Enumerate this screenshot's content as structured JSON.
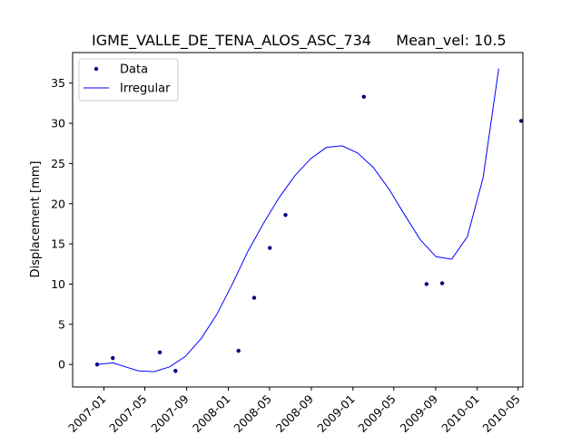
{
  "chart_data": {
    "type": "line",
    "title": "IGME_VALLE_DE_TENA_ALOS_ASC_734",
    "subtitle": "Mean_vel: 10.5",
    "xlabel": "",
    "ylabel": "Displacement [mm]",
    "xlim": [
      "2006-10-01",
      "2010-05-15"
    ],
    "ylim": [
      -2.8,
      38.8
    ],
    "x_ticks": [
      "2007-01",
      "2007-05",
      "2007-09",
      "2008-01",
      "2008-05",
      "2008-09",
      "2009-01",
      "2009-05",
      "2009-09",
      "2010-01",
      "2010-05"
    ],
    "y_ticks": [
      0,
      5,
      10,
      15,
      20,
      25,
      30,
      35
    ],
    "grid": false,
    "legend_position": "top-left",
    "series": [
      {
        "name": "Data",
        "style": "points",
        "color": "#00007f",
        "points": [
          {
            "x": "2006-12-12",
            "y": 0.0
          },
          {
            "x": "2007-01-27",
            "y": 0.8
          },
          {
            "x": "2007-06-14",
            "y": 1.5
          },
          {
            "x": "2007-07-30",
            "y": -0.8
          },
          {
            "x": "2008-01-31",
            "y": 1.7
          },
          {
            "x": "2008-03-17",
            "y": 8.3
          },
          {
            "x": "2008-05-02",
            "y": 14.5
          },
          {
            "x": "2008-06-17",
            "y": 18.6
          },
          {
            "x": "2009-02-02",
            "y": 33.3
          },
          {
            "x": "2009-08-05",
            "y": 10.0
          },
          {
            "x": "2009-09-20",
            "y": 10.1
          },
          {
            "x": "2010-05-10",
            "y": 30.3
          }
        ]
      },
      {
        "name": "Irregular",
        "style": "line",
        "color": "#0000ff",
        "points": [
          {
            "x": "2006-12-12",
            "y": 0.0
          },
          {
            "x": "2007-01-27",
            "y": 0.2
          },
          {
            "x": "2007-04-12",
            "y": -0.8
          },
          {
            "x": "2007-05-28",
            "y": -0.9
          },
          {
            "x": "2007-07-13",
            "y": -0.3
          },
          {
            "x": "2007-08-28",
            "y": 1.0
          },
          {
            "x": "2007-10-13",
            "y": 3.2
          },
          {
            "x": "2007-11-28",
            "y": 6.2
          },
          {
            "x": "2008-01-13",
            "y": 10.0
          },
          {
            "x": "2008-02-28",
            "y": 14.1
          },
          {
            "x": "2008-04-14",
            "y": 17.6
          },
          {
            "x": "2008-05-30",
            "y": 20.8
          },
          {
            "x": "2008-07-15",
            "y": 23.5
          },
          {
            "x": "2008-08-30",
            "y": 25.6
          },
          {
            "x": "2008-10-15",
            "y": 27.0
          },
          {
            "x": "2008-11-30",
            "y": 27.2
          },
          {
            "x": "2009-01-15",
            "y": 26.3
          },
          {
            "x": "2009-03-02",
            "y": 24.5
          },
          {
            "x": "2009-04-17",
            "y": 21.8
          },
          {
            "x": "2009-06-02",
            "y": 18.6
          },
          {
            "x": "2009-07-18",
            "y": 15.5
          },
          {
            "x": "2009-09-02",
            "y": 13.4
          },
          {
            "x": "2009-10-18",
            "y": 13.1
          },
          {
            "x": "2009-12-03",
            "y": 15.9
          },
          {
            "x": "2010-01-18",
            "y": 23.2
          },
          {
            "x": "2010-03-05",
            "y": 36.8
          }
        ]
      }
    ]
  }
}
